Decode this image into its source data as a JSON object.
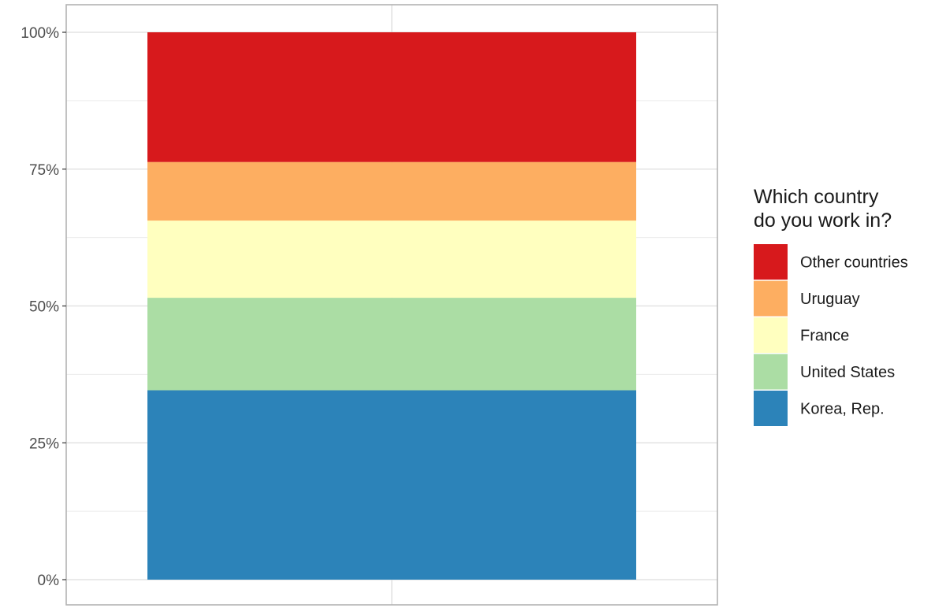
{
  "chart_data": {
    "type": "bar",
    "stacked": true,
    "position": "fill",
    "categories": [
      ""
    ],
    "series": [
      {
        "name": "Korea, Rep.",
        "values": [
          34.6
        ],
        "color": "#2C83B9"
      },
      {
        "name": "United States",
        "values": [
          16.9
        ],
        "color": "#ABDDA4"
      },
      {
        "name": "France",
        "values": [
          14.1
        ],
        "color": "#FFFFBF"
      },
      {
        "name": "Uruguay",
        "values": [
          10.7
        ],
        "color": "#FDAE61"
      },
      {
        "name": "Other countries",
        "values": [
          23.7
        ],
        "color": "#D7191C"
      }
    ],
    "ylim": [
      0,
      100
    ],
    "yticks": [
      {
        "value": 0,
        "label": "0%"
      },
      {
        "value": 25,
        "label": "25%"
      },
      {
        "value": 50,
        "label": "50%"
      },
      {
        "value": 75,
        "label": "75%"
      },
      {
        "value": 100,
        "label": "100%"
      }
    ],
    "grid": true,
    "legend": {
      "title_lines": [
        "Which country",
        "do you work in?"
      ],
      "placement": "right",
      "order": [
        "Other countries",
        "Uruguay",
        "France",
        "United States",
        "Korea, Rep."
      ]
    }
  }
}
